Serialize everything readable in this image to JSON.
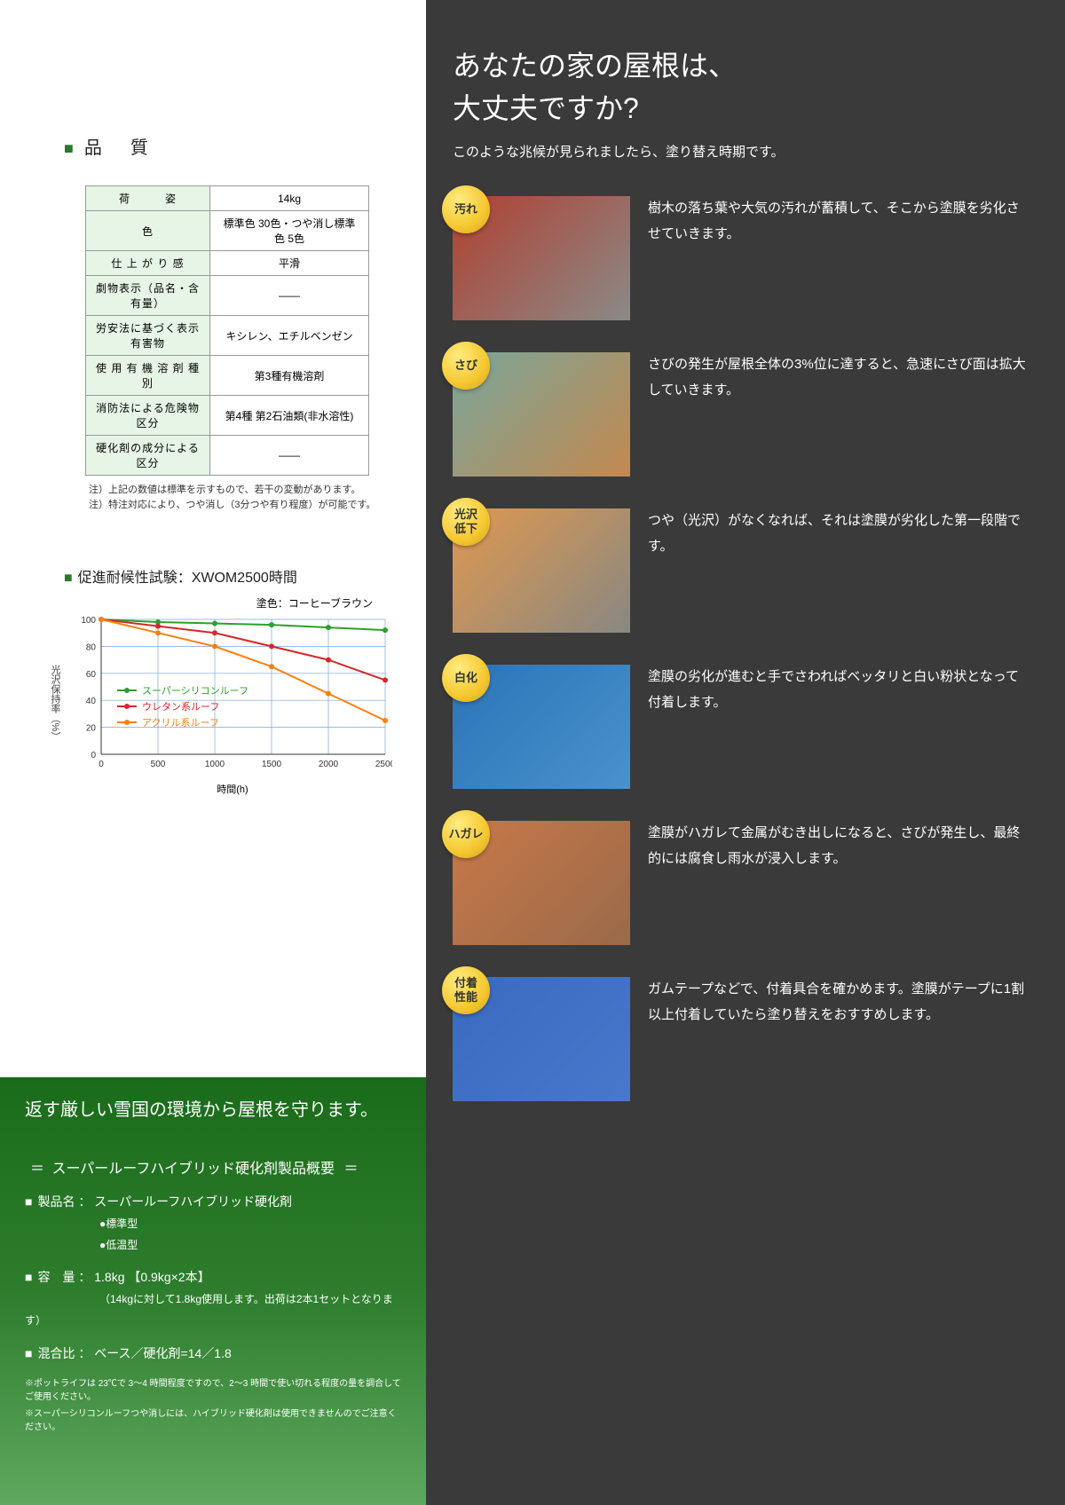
{
  "left": {
    "quality_heading": "品　質",
    "table": {
      "rows": [
        {
          "label": "荷　　　姿",
          "value": "14kg"
        },
        {
          "label": "色",
          "value": "標準色 30色・つや消し標準色 5色"
        },
        {
          "label": "仕 上 が り 感",
          "value": "平滑"
        },
        {
          "label": "劇物表示（品名・含有量）",
          "value": "——"
        },
        {
          "label": "労安法に基づく表示有害物",
          "value": "キシレン、エチルベンゼン"
        },
        {
          "label": "使 用 有 機 溶 剤 種 別",
          "value": "第3種有機溶剤"
        },
        {
          "label": "消防法による危険物区分",
          "value": "第4種 第2石油類(非水溶性)"
        },
        {
          "label": "硬化剤の成分による区分",
          "value": "——"
        }
      ],
      "notes": [
        "注）上記の数値は標準を示すもので、若干の変動があります。",
        "注）特注対応により、つや消し（3分つや有り程度）が可能です。"
      ]
    },
    "chart": {
      "heading": "促進耐候性試験",
      "heading_suffix": "：XWOM2500時間",
      "sublabel": "塗色：コーヒーブラウン",
      "type": "line",
      "ylabel": "光沢保持率（%）",
      "xlabel": "時間(h)",
      "xlim": [
        0,
        2500
      ],
      "xtick_step": 500,
      "ylim": [
        0,
        100
      ],
      "ytick_step": 20,
      "grid_color": "#7aa6d6",
      "background_color": "#ffffff",
      "axis_color": "#333333",
      "line_width": 2,
      "marker": "circle",
      "marker_size": 3,
      "series": [
        {
          "name": "スーパーシリコンルーフ",
          "color": "#2ca02c",
          "x": [
            0,
            500,
            1000,
            1500,
            2000,
            2500
          ],
          "y": [
            100,
            98,
            97,
            96,
            94,
            92
          ]
        },
        {
          "name": "ウレタン系ルーフ",
          "color": "#d62728",
          "x": [
            0,
            500,
            1000,
            1500,
            2000,
            2500
          ],
          "y": [
            100,
            95,
            90,
            80,
            70,
            55
          ]
        },
        {
          "name": "アクリル系ルーフ",
          "color": "#ff7f0e",
          "x": [
            0,
            500,
            1000,
            1500,
            2000,
            2500
          ],
          "y": [
            100,
            90,
            80,
            65,
            45,
            25
          ]
        }
      ],
      "legend_position": "inside-left-middle",
      "legend_fontsize": 11
    }
  },
  "green": {
    "banner": "返す厳しい雪国の環境から屋根を守ります。",
    "overview_heading": "スーパールーフハイブリッド硬化剤製品概要",
    "items": [
      {
        "label": "製品名",
        "value": "スーパールーフハイブリッド硬化剤",
        "subs": [
          "●標準型",
          "●低温型"
        ]
      },
      {
        "label": "容　量",
        "value": "1.8kg 【0.9kg×2本】",
        "note": "（14kgに対して1.8kg使用します。出荷は2本1セットとなります）"
      },
      {
        "label": "混合比",
        "value": "ベース／硬化剤=14／1.8"
      }
    ],
    "footnotes": [
      "※ポットライフは 23℃で 3～4 時間程度ですので、2～3 時間で使い切れる程度の量を調合してご使用ください。",
      "※スーパーシリコンルーフつや消しには、ハイブリッド硬化剤は使用できませんのでご注意ください。"
    ]
  },
  "right": {
    "title_line1": "あなたの家の屋根は、",
    "title_line2": "大丈夫ですか?",
    "subtitle": "このような兆候が見られましたら、塗り替え時期です。",
    "symptoms": [
      {
        "tag": "汚れ",
        "colors": [
          "#b04030",
          "#8a8a88"
        ],
        "desc": "樹木の落ち葉や大気の汚れが蓄積して、そこから塗膜を劣化させていきます。"
      },
      {
        "tag": "さび",
        "colors": [
          "#7aa69a",
          "#c38850"
        ],
        "desc": "さびの発生が屋根全体の3%位に達すると、急速にさび面は拡大していきます。"
      },
      {
        "tag": "光沢\n低下",
        "colors": [
          "#e09850",
          "#888882"
        ],
        "desc": "つや（光沢）がなくなれば、それは塗膜が劣化した第一段階です。"
      },
      {
        "tag": "白化",
        "colors": [
          "#2a74b8",
          "#4a92cc"
        ],
        "desc": "塗膜の劣化が進むと手でさわればベッタリと白い粉状となって付着します。"
      },
      {
        "tag": "ハガレ",
        "colors": [
          "#c87848",
          "#9a6a4a"
        ],
        "desc": "塗膜がハガレて金属がむき出しになると、さびが発生し、最終的には腐食し雨水が浸入します。"
      },
      {
        "tag": "付着\n性能",
        "colors": [
          "#3a6ac0",
          "#4878cc"
        ],
        "desc": "ガムテープなどで、付着具合を確かめます。塗膜がテープに1割以上付着していたら塗り替えをおすすめします。"
      }
    ]
  }
}
